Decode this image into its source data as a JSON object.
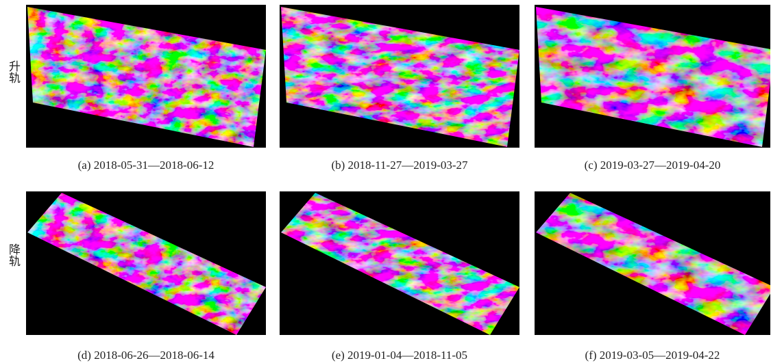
{
  "rows": [
    {
      "label": "升轨",
      "panels": [
        {
          "caption": "(a) 2018-05-31—2018-06-12"
        },
        {
          "caption": "(b) 2018-11-27—2019-03-27"
        },
        {
          "caption": "(c) 2019-03-27—2019-04-20"
        }
      ]
    },
    {
      "label": "降轨",
      "panels": [
        {
          "caption": "(d) 2018-06-26—2018-06-14"
        },
        {
          "caption": "(e) 2019-01-04—2018-11-05"
        },
        {
          "caption": "(f) 2019-03-05—2019-04-22"
        }
      ]
    }
  ]
}
